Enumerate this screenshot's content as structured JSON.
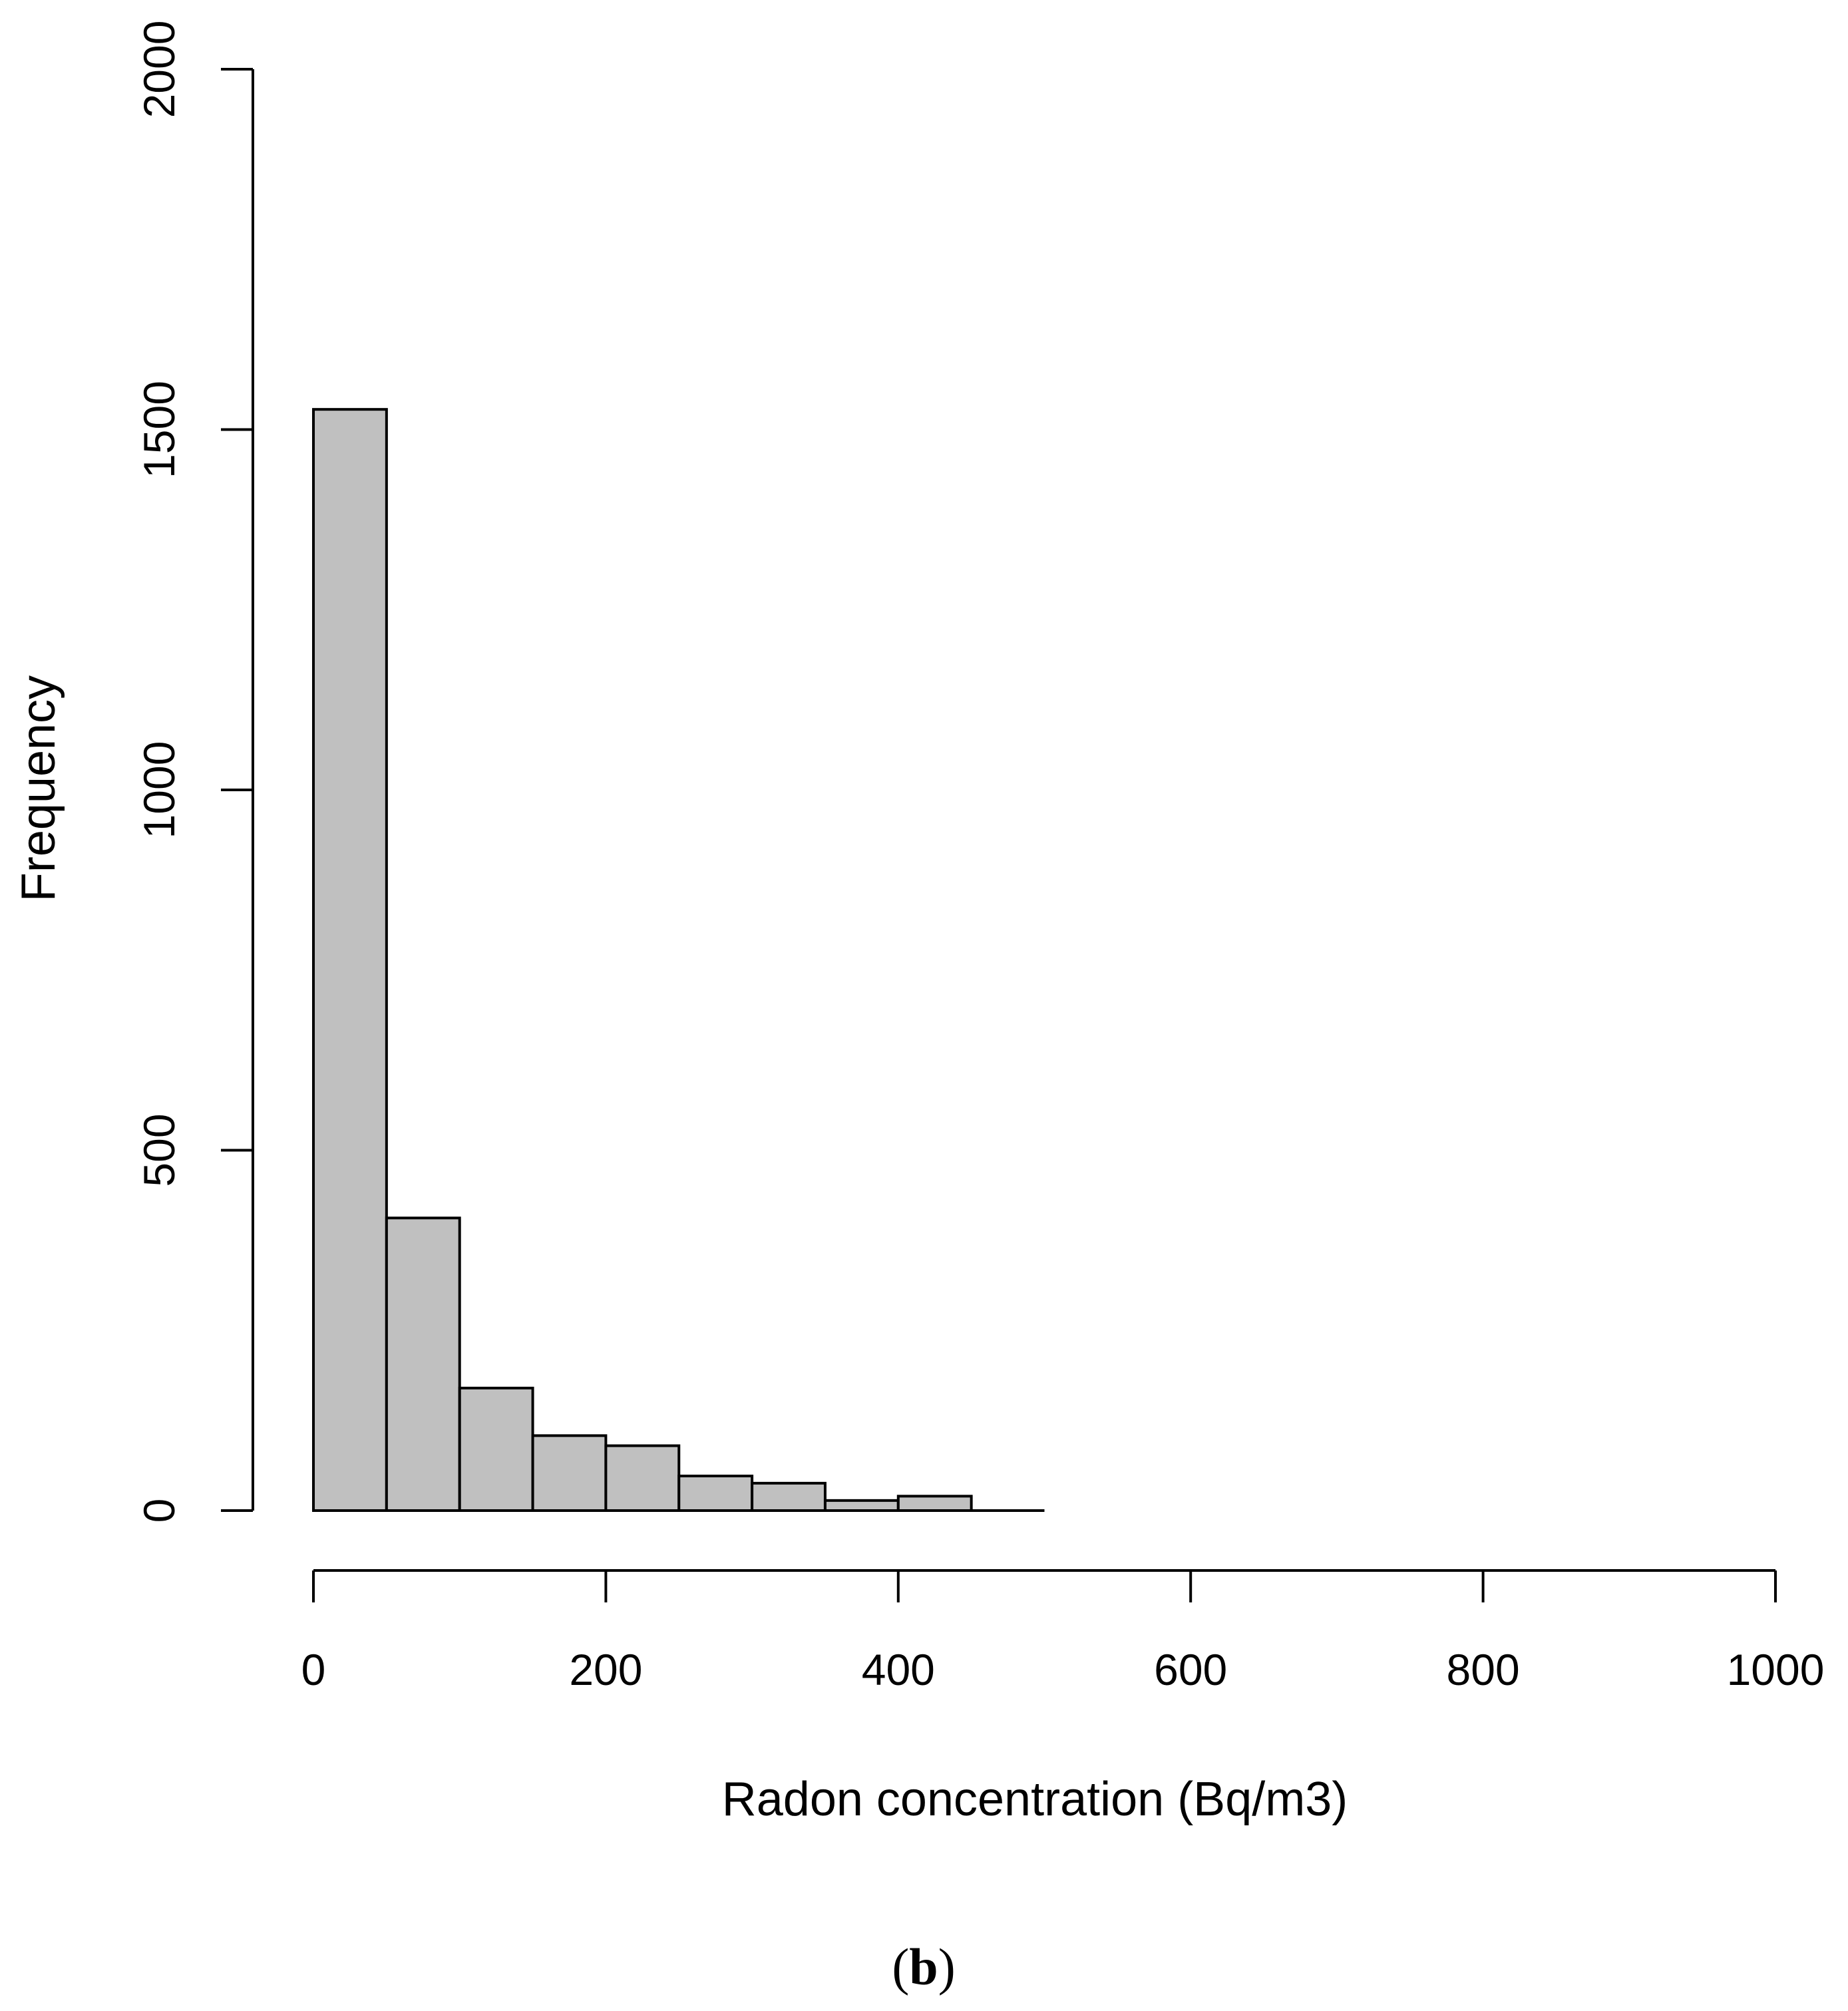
{
  "chart_data": {
    "type": "bar",
    "subtype": "histogram",
    "title": "",
    "xlabel": "Radon concentration (Bq/m3)",
    "ylabel": "Frequency",
    "bin_width": 50,
    "bins": [
      {
        "start": 0,
        "end": 50,
        "count": 1528
      },
      {
        "start": 50,
        "end": 100,
        "count": 406
      },
      {
        "start": 100,
        "end": 150,
        "count": 170
      },
      {
        "start": 150,
        "end": 200,
        "count": 104
      },
      {
        "start": 200,
        "end": 250,
        "count": 90
      },
      {
        "start": 250,
        "end": 300,
        "count": 48
      },
      {
        "start": 300,
        "end": 350,
        "count": 38
      },
      {
        "start": 350,
        "end": 400,
        "count": 14
      },
      {
        "start": 400,
        "end": 450,
        "count": 20
      },
      {
        "start": 450,
        "end": 500,
        "count": 0
      }
    ],
    "xlim": [
      0,
      1000
    ],
    "ylim": [
      0,
      2000
    ],
    "x_ticks": [
      0,
      200,
      400,
      600,
      800,
      1000
    ],
    "y_ticks": [
      0,
      500,
      1000,
      1500,
      2000
    ],
    "bar_color": "#c0c0c0",
    "edge_color": "#000000",
    "grid": false,
    "legend": "none"
  },
  "caption": {
    "open": "(",
    "letter": "b",
    "close": ")"
  }
}
